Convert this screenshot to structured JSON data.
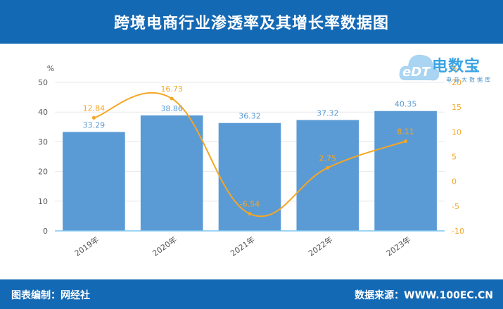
{
  "header": {
    "title": "跨境电商行业渗透率及其增长率数据图"
  },
  "footer": {
    "editor": "图表编制：网经社",
    "source": "数据来源：WWW.100EC.CN"
  },
  "logo": {
    "mark_text": "eDT",
    "name": "电数宝",
    "subtitle": "电商大数据库"
  },
  "chart_data": {
    "type": "bar",
    "categories": [
      "2019年",
      "2020年",
      "2021年",
      "2022年",
      "2023年"
    ],
    "series": [
      {
        "type": "bar",
        "values": [
          33.29,
          38.86,
          36.32,
          37.32,
          40.35
        ],
        "color": "#5b9bd5",
        "axis": "left"
      },
      {
        "type": "line",
        "values": [
          12.84,
          16.73,
          -6.54,
          2.75,
          8.11
        ],
        "color": "#f5a623",
        "axis": "right"
      }
    ],
    "y_left": {
      "label": "%",
      "ylim": [
        0,
        50
      ],
      "ticks": [
        "0",
        "10",
        "20",
        "30",
        "40",
        "50"
      ]
    },
    "y_right": {
      "label": "%",
      "ylim": [
        -10,
        20
      ],
      "ticks": [
        "-10",
        "-5",
        "0",
        "5",
        "10",
        "15",
        "20"
      ]
    },
    "grid": true,
    "legend": "none",
    "colors": {
      "bar": "#5b9bd5",
      "line": "#f5a623",
      "baseline": "#7fc6f0",
      "grid": "#e8e8e8",
      "bar_label": "#5b9bd5",
      "line_label": "#f5a623"
    }
  }
}
